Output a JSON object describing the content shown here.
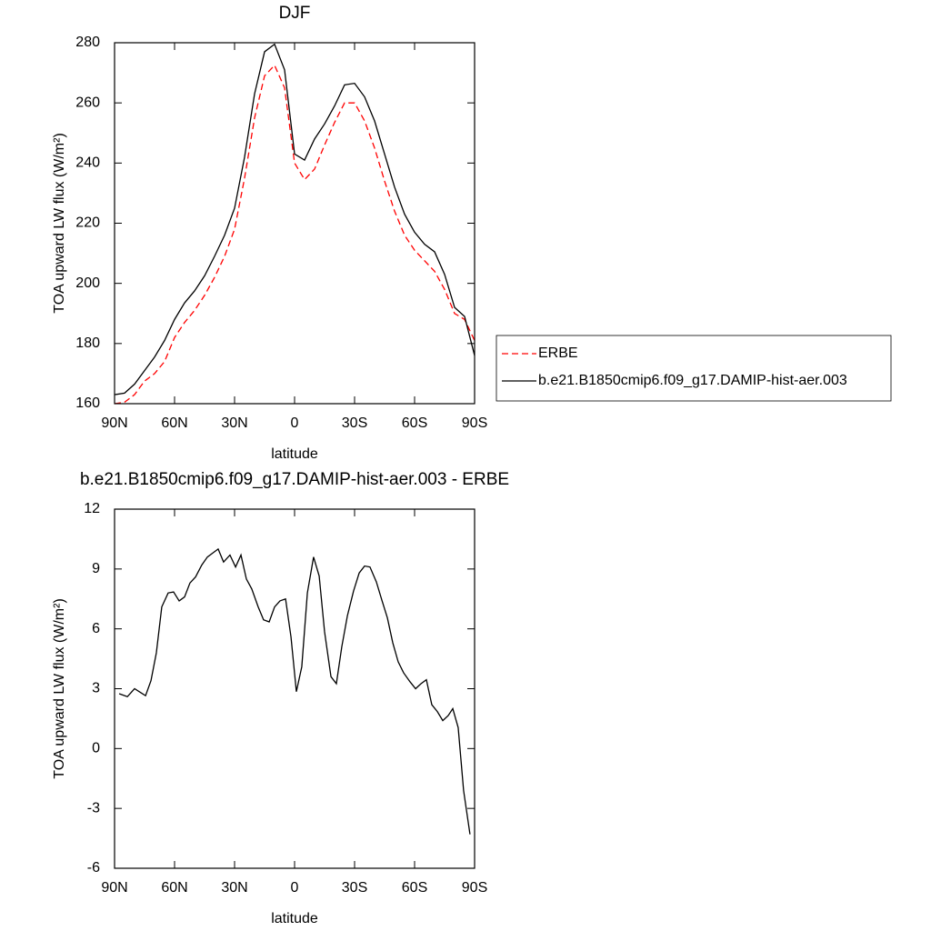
{
  "chart_data": [
    {
      "type": "line",
      "title": "DJF",
      "xlabel": "latitude",
      "ylabel": "TOA upward LW flux (W/m²)",
      "x": [
        90,
        85,
        80,
        75,
        70,
        65,
        60,
        55,
        50,
        45,
        40,
        35,
        30,
        25,
        20,
        15,
        10,
        5,
        0,
        -5,
        -10,
        -15,
        -20,
        -25,
        -30,
        -35,
        -40,
        -45,
        -50,
        -55,
        -60,
        -65,
        -70,
        -75,
        -80,
        -85,
        -90
      ],
      "series": [
        {
          "name": "ERBE",
          "color": "#ff0000",
          "linestyle": "dashed",
          "values": [
            160,
            160.5,
            163,
            167.5,
            170,
            174,
            182,
            187,
            191,
            196,
            202,
            209,
            218,
            235,
            255,
            269,
            272.5,
            265,
            240,
            234.5,
            238,
            246,
            253.5,
            260,
            260,
            254,
            245,
            234,
            224,
            216,
            211,
            207.5,
            204,
            198,
            190,
            188,
            181
          ]
        },
        {
          "name": "b.e21.B1850cmip6.f09_g17.DAMIP-hist-aer.003",
          "color": "#000000",
          "linestyle": "solid",
          "values": [
            163,
            163.5,
            166.5,
            171,
            175.5,
            181,
            188,
            193.5,
            197.5,
            202.5,
            209,
            216,
            225,
            242,
            263,
            277,
            279.5,
            271,
            243,
            241,
            248,
            253,
            259,
            266,
            266.5,
            262,
            254,
            243,
            232,
            223,
            217,
            213,
            210.5,
            203,
            192,
            189,
            176
          ]
        }
      ],
      "xlim": [
        90,
        -90
      ],
      "xticks": [
        {
          "value": 90,
          "label": "90N"
        },
        {
          "value": 60,
          "label": "60N"
        },
        {
          "value": 30,
          "label": "30N"
        },
        0,
        {
          "value": -30,
          "label": "30S"
        },
        {
          "value": -60,
          "label": "60S"
        },
        {
          "value": -90,
          "label": "90S"
        }
      ],
      "ylim": [
        160,
        280
      ],
      "yticks": [
        160,
        180,
        200,
        220,
        240,
        260,
        280
      ],
      "legend": "outside-right"
    },
    {
      "type": "line",
      "title": "b.e21.B1850cmip6.f09_g17.DAMIP-hist-aer.003 - ERBE",
      "xlabel": "latitude",
      "ylabel": "TOA upward LW flux (W/m²)",
      "x": [
        87.7,
        83.6,
        80,
        74.5,
        71.8,
        69.1,
        66.4,
        63.2,
        60.5,
        57.7,
        55,
        52.3,
        49.5,
        46.4,
        43.6,
        40.9,
        38.2,
        35.5,
        32.3,
        29.5,
        26.8,
        24.1,
        21.4,
        18.2,
        15.5,
        12.7,
        10,
        7.3,
        4.5,
        1.8,
        -0.9,
        -3.6,
        -6.4,
        -9.5,
        -12.3,
        -15,
        -18.2,
        -20.9,
        -23.6,
        -26.4,
        -29.5,
        -32.3,
        -35,
        -37.7,
        -40.9,
        -43.6,
        -46.4,
        -49.1,
        -51.8,
        -54.5,
        -57.7,
        -60.5,
        -63.2,
        -65.9,
        -68.6,
        -71.4,
        -74.1,
        -76.8,
        -79.1,
        -81.8,
        -84.5,
        -87.7
      ],
      "series": [
        {
          "color": "#000000",
          "linestyle": "solid",
          "values": [
            2.75,
            2.6,
            3.0,
            2.65,
            3.4,
            4.8,
            7.1,
            7.8,
            7.85,
            7.4,
            7.6,
            8.3,
            8.6,
            9.2,
            9.6,
            9.8,
            10,
            9.35,
            9.7,
            9.1,
            9.7,
            8.5,
            8,
            7.1,
            6.45,
            6.35,
            7.1,
            7.4,
            7.5,
            5.6,
            2.85,
            4.1,
            7.8,
            9.6,
            8.65,
            5.85,
            3.6,
            3.25,
            5.1,
            6.65,
            7.9,
            8.8,
            9.15,
            9.1,
            8.35,
            7.45,
            6.55,
            5.3,
            4.35,
            3.8,
            3.35,
            3.0,
            3.25,
            3.45,
            2.2,
            1.85,
            1.4,
            1.65,
            2,
            1.05,
            -2.1,
            -4.3
          ]
        }
      ],
      "xlim": [
        90,
        -90
      ],
      "xticks": [
        {
          "value": 90,
          "label": "90N"
        },
        {
          "value": 60,
          "label": "60N"
        },
        {
          "value": 30,
          "label": "30N"
        },
        0,
        {
          "value": -30,
          "label": "30S"
        },
        {
          "value": -60,
          "label": "60S"
        },
        {
          "value": -90,
          "label": "90S"
        }
      ],
      "ylim": [
        -6,
        12
      ],
      "yticks": [
        -6,
        -3,
        0,
        3,
        6,
        9,
        12
      ]
    }
  ]
}
